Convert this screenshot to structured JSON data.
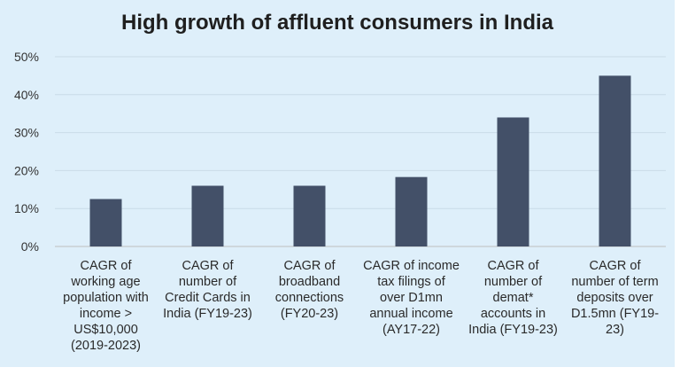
{
  "chart_data": {
    "type": "bar",
    "title": "High growth of affluent consumers in India",
    "xlabel": "",
    "ylabel": "",
    "ylim": [
      0,
      50
    ],
    "yticks": [
      "0%",
      "10%",
      "20%",
      "30%",
      "40%",
      "50%"
    ],
    "grid": true,
    "categories": [
      [
        "CAGR of",
        "working age",
        "population with",
        "income >",
        "US$10,000",
        "(2019-2023)"
      ],
      [
        "CAGR of",
        "number of",
        "Credit Cards in",
        "India (FY19-23)"
      ],
      [
        "CAGR of",
        "broadband",
        "connections",
        "(FY20-23)"
      ],
      [
        "CAGR of income",
        "tax filings of",
        "over D1mn",
        "annual income",
        "(AY17-22)"
      ],
      [
        "CAGR of",
        "number of",
        "demat*",
        "accounts in",
        "India (FY19-23)"
      ],
      [
        "CAGR of",
        "number of term",
        "deposits over",
        "D1.5mn (FY19-",
        "23)"
      ]
    ],
    "values": [
      12.5,
      16,
      16,
      18.3,
      34,
      45
    ],
    "colors": {
      "bar": "#435068",
      "background": "#deeffa"
    }
  }
}
